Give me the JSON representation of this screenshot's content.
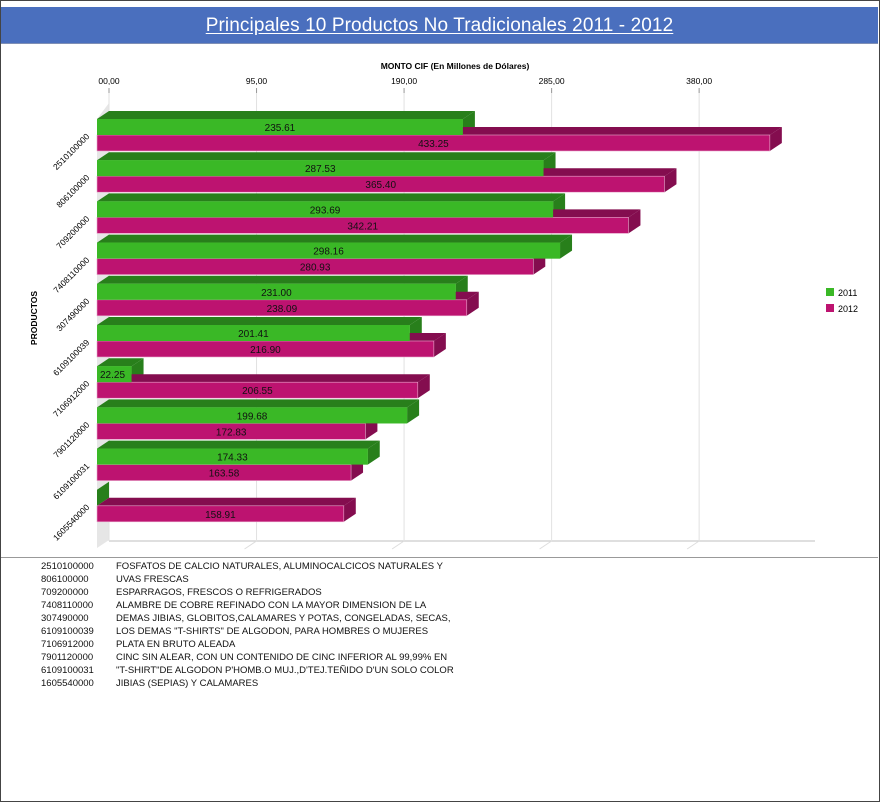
{
  "header": {
    "title": "Principales 10 Productos No Tradicionales  2011 - 2012"
  },
  "colors": {
    "header_bg": "#4a6fbe",
    "series_2011": "#3ab826",
    "series_2011_dark": "#287f1b",
    "series_2012": "#bd1370",
    "series_2012_dark": "#840d4f"
  },
  "chart_data": {
    "type": "bar",
    "orientation": "horizontal",
    "style": "3d-clustered",
    "title": "Principales 10 Productos No Tradicionales  2011 - 2012",
    "xlabel": "MONTO CIF (En Millones de Dólares)",
    "ylabel": "PRODUCTOS",
    "x_axis_position": "top",
    "xlim": [
      0,
      440
    ],
    "x_ticks": [
      0,
      95,
      190,
      285,
      380
    ],
    "x_tick_labels": [
      "00,00",
      "95,00",
      "190,00",
      "285,00",
      "380,00"
    ],
    "grid": true,
    "legend": "right",
    "categories": [
      "2510100000",
      "806100000",
      "709200000",
      "7408110000",
      "307490000",
      "6109100039",
      "7106912000",
      "7901120000",
      "6109100031",
      "1605540000"
    ],
    "series": [
      {
        "name": "2011",
        "color": "#3ab826",
        "values": [
          235.61,
          287.53,
          293.69,
          298.16,
          231.0,
          201.41,
          22.25,
          199.68,
          174.33,
          0
        ],
        "labels": [
          "235.61",
          "287.53",
          "293.69",
          "298.16",
          "231.00",
          "201.41",
          "22.25",
          "199.68",
          "174.33",
          ""
        ]
      },
      {
        "name": "2012",
        "color": "#bd1370",
        "values": [
          433.25,
          365.4,
          342.21,
          280.93,
          238.09,
          216.9,
          206.55,
          172.83,
          163.58,
          158.91
        ],
        "labels": [
          "433.25",
          "365.40",
          "342.21",
          "280.93",
          "238.09",
          "216.90",
          "206.55",
          "172.83",
          "163.58",
          "158.91"
        ]
      }
    ]
  },
  "descriptions": [
    {
      "code": "2510100000",
      "text": "FOSFATOS DE CALCIO NATURALES, ALUMINOCALCICOS NATURALES Y"
    },
    {
      "code": "806100000",
      "text": "UVAS FRESCAS"
    },
    {
      "code": "709200000",
      "text": "ESPARRAGOS, FRESCOS O REFRIGERADOS"
    },
    {
      "code": "7408110000",
      "text": "ALAMBRE DE COBRE REFINADO CON LA MAYOR DIMENSION DE LA"
    },
    {
      "code": "307490000",
      "text": "DEMAS JIBIAS, GLOBITOS,CALAMARES Y POTAS, CONGELADAS, SECAS,"
    },
    {
      "code": "6109100039",
      "text": "LOS DEMAS \"T-SHIRTS\" DE ALGODON, PARA HOMBRES O MUJERES"
    },
    {
      "code": "7106912000",
      "text": "PLATA EN BRUTO ALEADA"
    },
    {
      "code": "7901120000",
      "text": "CINC SIN ALEAR, CON UN CONTENIDO DE CINC INFERIOR AL 99,99% EN"
    },
    {
      "code": "6109100031",
      "text": "\"T-SHIRT\"DE ALGODON P'HOMB.O MUJ.,D'TEJ.TEÑIDO D'UN SOLO COLOR"
    },
    {
      "code": "1605540000",
      "text": "JIBIAS (SEPIAS) Y CALAMARES"
    }
  ]
}
